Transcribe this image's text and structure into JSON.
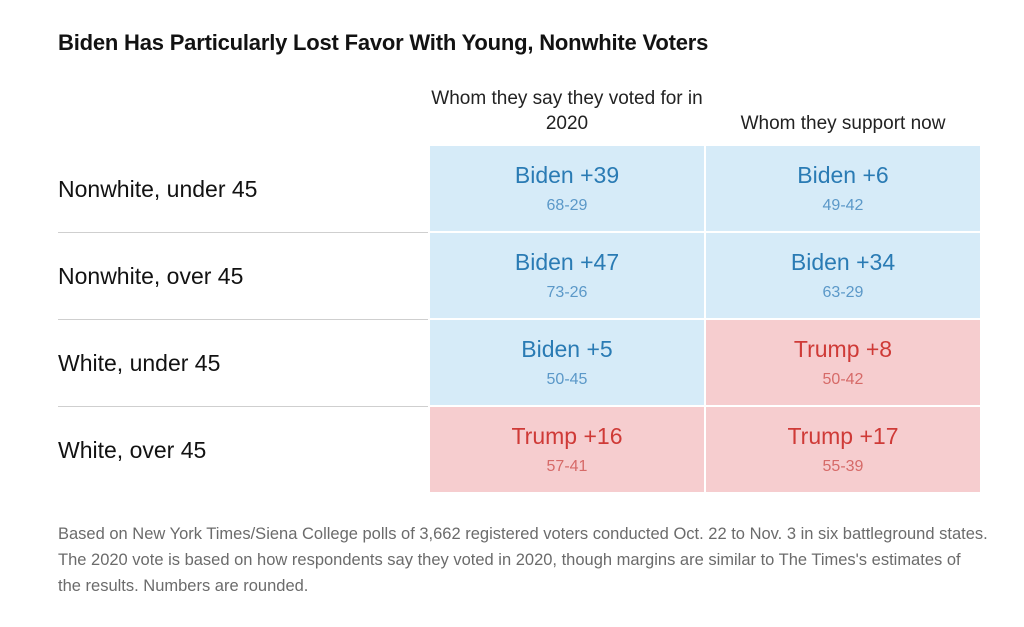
{
  "title": "Biden Has Particularly Lost Favor With Young, Nonwhite Voters",
  "chart_data": {
    "type": "table",
    "title": "Biden Has Particularly Lost Favor With Young, Nonwhite Voters",
    "columns": [
      "Whom they say they voted for in 2020",
      "Whom they support now"
    ],
    "rows": [
      {
        "label": "Nonwhite, under 45",
        "cells": [
          {
            "candidate": "Biden",
            "margin_label": "Biden +39",
            "margin": 39,
            "split": "68-29"
          },
          {
            "candidate": "Biden",
            "margin_label": "Biden +6",
            "margin": 6,
            "split": "49-42"
          }
        ]
      },
      {
        "label": "Nonwhite, over 45",
        "cells": [
          {
            "candidate": "Biden",
            "margin_label": "Biden +47",
            "margin": 47,
            "split": "73-26"
          },
          {
            "candidate": "Biden",
            "margin_label": "Biden +34",
            "margin": 34,
            "split": "63-29"
          }
        ]
      },
      {
        "label": "White, under 45",
        "cells": [
          {
            "candidate": "Biden",
            "margin_label": "Biden +5",
            "margin": 5,
            "split": "50-45"
          },
          {
            "candidate": "Trump",
            "margin_label": "Trump +8",
            "margin": 8,
            "split": "50-42"
          }
        ]
      },
      {
        "label": "White, over 45",
        "cells": [
          {
            "candidate": "Trump",
            "margin_label": "Trump +16",
            "margin": 16,
            "split": "57-41"
          },
          {
            "candidate": "Trump",
            "margin_label": "Trump +17",
            "margin": 17,
            "split": "55-39"
          }
        ]
      }
    ],
    "colors": {
      "biden_fill": "#d6ebf8",
      "biden_text": "#2a7bb4",
      "trump_fill": "#f6cdcf",
      "trump_text": "#cf3a37"
    }
  },
  "note": "Based on New York Times/Siena College polls of 3,662 registered voters conducted Oct. 22 to Nov. 3 in six battleground states. The 2020 vote is based on how respondents say they voted in 2020, though margins are similar to The Times's estimates of the results. Numbers are rounded."
}
